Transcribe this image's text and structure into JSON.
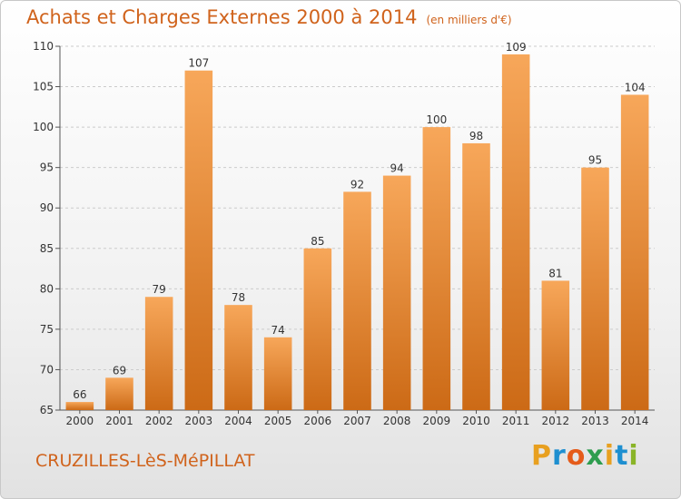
{
  "header": {
    "title": "Achats et Charges Externes 2000 à 2014",
    "unit": "(en milliers d'€)"
  },
  "footer": {
    "town": "CRUZILLES-LèS-MéPILLAT",
    "logo": {
      "letters": [
        "P",
        "r",
        "o",
        "x",
        "i",
        "t",
        "i"
      ],
      "colors": [
        "#e8a020",
        "#1e8fd0",
        "#e55b1a",
        "#2e9d4f",
        "#e8a020",
        "#1e8fd0",
        "#8ab428"
      ]
    }
  },
  "chart_data": {
    "type": "bar",
    "title": "Achats et Charges Externes 2000 à 2014",
    "categories": [
      "2000",
      "2001",
      "2002",
      "2003",
      "2004",
      "2005",
      "2006",
      "2007",
      "2008",
      "2009",
      "2010",
      "2011",
      "2012",
      "2013",
      "2014"
    ],
    "values": [
      66,
      69,
      79,
      107,
      78,
      74,
      85,
      92,
      94,
      100,
      98,
      109,
      81,
      95,
      104
    ],
    "ylim": [
      65,
      110
    ],
    "yticks": [
      65,
      70,
      75,
      80,
      85,
      90,
      95,
      100,
      105,
      110
    ],
    "grid": true,
    "bar_color_top": "#f7a75a",
    "bar_color_bottom": "#cc6a16",
    "grid_color": "#cccccc"
  }
}
